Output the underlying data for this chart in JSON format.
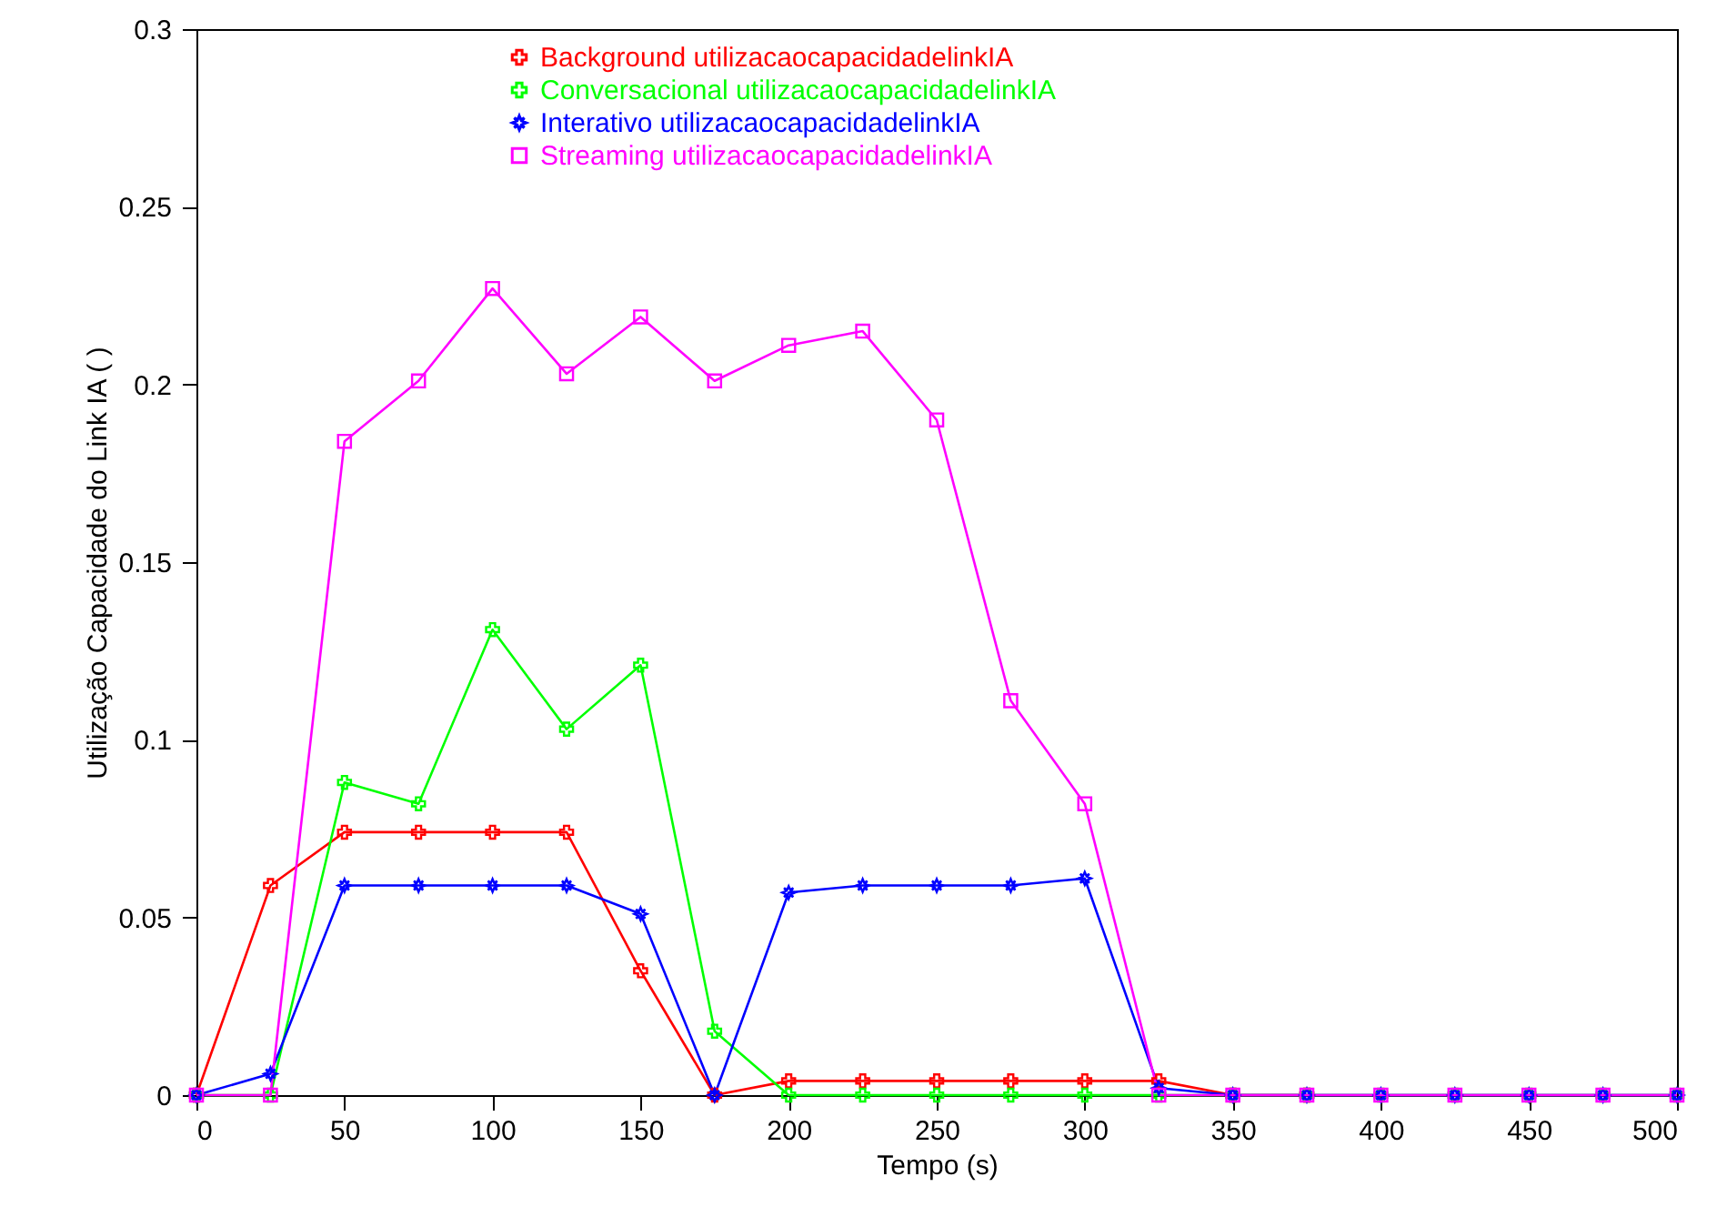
{
  "chart_data": {
    "type": "line",
    "xlabel": "Tempo (s)",
    "ylabel": "Utilização Capacidade do Link IA ( )",
    "x": [
      0,
      25,
      50,
      75,
      100,
      125,
      150,
      175,
      200,
      225,
      250,
      275,
      300,
      325,
      350,
      375,
      400,
      425,
      450,
      475,
      500
    ],
    "series": [
      {
        "name": "Background utilizacaocapacidadelinkIA",
        "color": "#ff0000",
        "marker": "cross",
        "values": [
          0,
          0.059,
          0.074,
          0.074,
          0.074,
          0.074,
          0.035,
          0,
          0.004,
          0.004,
          0.004,
          0.004,
          0.004,
          0.004,
          0,
          0,
          null,
          null,
          null,
          null,
          null
        ]
      },
      {
        "name": "Conversacional utilizacaocapacidadelinkIA",
        "color": "#00ff00",
        "marker": "cross",
        "values": [
          0,
          0,
          0.088,
          0.082,
          0.131,
          0.103,
          0.121,
          0.018,
          0,
          0,
          0,
          0,
          0,
          0,
          0,
          0,
          0,
          0,
          0,
          0,
          0
        ]
      },
      {
        "name": "Interativo utilizacaocapacidadelinkIA",
        "color": "#0000ff",
        "marker": "star",
        "values": [
          0,
          0.006,
          0.059,
          0.059,
          0.059,
          0.059,
          0.051,
          0,
          0.057,
          0.059,
          0.059,
          0.059,
          0.061,
          0.002,
          0,
          0,
          0,
          0,
          0,
          0,
          0
        ]
      },
      {
        "name": "Streaming utilizacaocapacidadelinkIA",
        "color": "#ff00ff",
        "marker": "square",
        "values": [
          0,
          0,
          0.184,
          0.201,
          0.227,
          0.203,
          0.219,
          0.201,
          0.211,
          0.215,
          0.19,
          0.111,
          0.082,
          0,
          0,
          0,
          0,
          0,
          0,
          0,
          0
        ]
      }
    ],
    "xlim": [
      0,
      500
    ],
    "xticks": [
      0,
      50,
      100,
      150,
      200,
      250,
      300,
      350,
      400,
      450,
      500
    ],
    "ylim": [
      0,
      0.3
    ],
    "yticks": [
      0,
      0.05,
      0.1,
      0.15,
      0.2,
      0.25,
      0.3
    ],
    "grid": false,
    "legend": "top",
    "line_style": "solid"
  }
}
